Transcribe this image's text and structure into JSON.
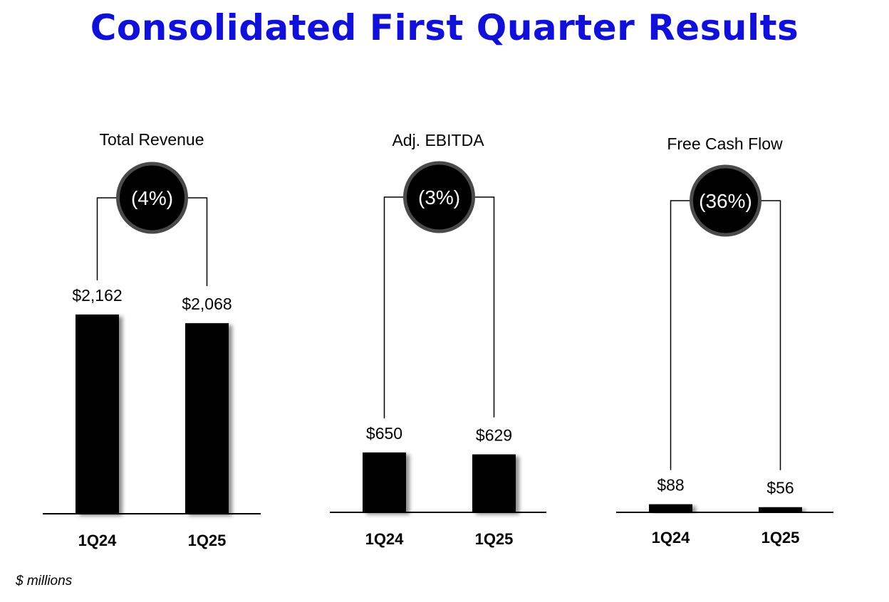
{
  "page": {
    "title": "Consolidated First Quarter Results",
    "footnote": "$ millions",
    "title_color": "#1010d8"
  },
  "chart_data": [
    {
      "type": "bar",
      "title": "Total Revenue",
      "categories": [
        "1Q24",
        "1Q25"
      ],
      "values": [
        2162,
        2068
      ],
      "value_labels": [
        "$2,162",
        "$2,068"
      ],
      "change_label": "(4%)",
      "unit": "$ millions",
      "ylim": [
        0,
        2162
      ],
      "bar_color": "#000000"
    },
    {
      "type": "bar",
      "title": "Adj. EBITDA",
      "categories": [
        "1Q24",
        "1Q25"
      ],
      "values": [
        650,
        629
      ],
      "value_labels": [
        "$650",
        "$629"
      ],
      "change_label": "(3%)",
      "unit": "$ millions",
      "ylim": [
        0,
        2162
      ],
      "bar_color": "#000000"
    },
    {
      "type": "bar",
      "title": "Free Cash Flow",
      "categories": [
        "1Q24",
        "1Q25"
      ],
      "values": [
        88,
        56
      ],
      "value_labels": [
        "$88",
        "$56"
      ],
      "change_label": "(36%)",
      "unit": "$ millions",
      "ylim": [
        0,
        2162
      ],
      "bar_color": "#000000"
    }
  ]
}
